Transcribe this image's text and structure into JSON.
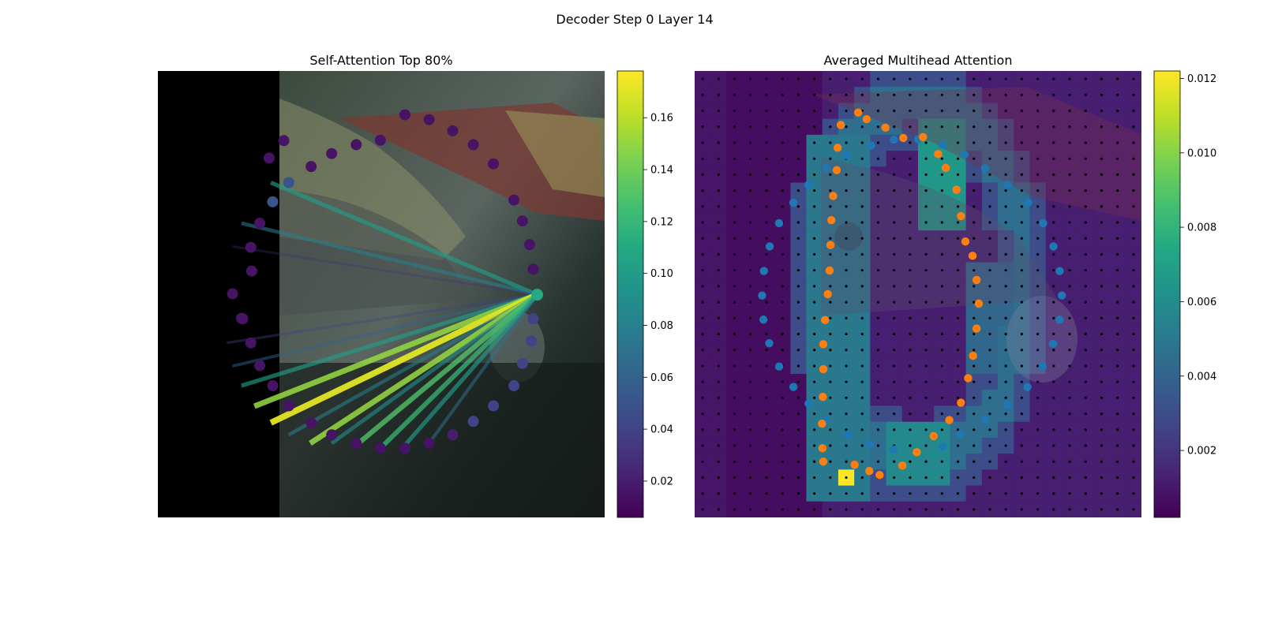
{
  "figure": {
    "title": "Decoder Step 0 Layer 14"
  },
  "colors": {
    "viridis": [
      "#440154",
      "#482475",
      "#414487",
      "#355f8d",
      "#2a788e",
      "#21918c",
      "#22a884",
      "#44bf70",
      "#7ad151",
      "#bddf26",
      "#fde725"
    ],
    "blue_points": "#1f77b4",
    "orange_points": "#ff7f0e",
    "grid_dots": "#000000"
  },
  "chart_data": [
    {
      "type": "scatter",
      "title": "Self-Attention Top 80%",
      "description_none": "",
      "xlim": [
        0,
        1
      ],
      "ylim": [
        0,
        1
      ],
      "query_point": {
        "x": 0.849,
        "y": 0.501,
        "value": 0.11
      },
      "points": [
        {
          "x": 0.84,
          "y": 0.444,
          "value": 0.015
        },
        {
          "x": 0.832,
          "y": 0.389,
          "value": 0.015
        },
        {
          "x": 0.816,
          "y": 0.336,
          "value": 0.015
        },
        {
          "x": 0.797,
          "y": 0.289,
          "value": 0.015
        },
        {
          "x": 0.751,
          "y": 0.208,
          "value": 0.015
        },
        {
          "x": 0.706,
          "y": 0.165,
          "value": 0.015
        },
        {
          "x": 0.66,
          "y": 0.134,
          "value": 0.015
        },
        {
          "x": 0.607,
          "y": 0.109,
          "value": 0.015
        },
        {
          "x": 0.553,
          "y": 0.098,
          "value": 0.015
        },
        {
          "x": 0.498,
          "y": 0.155,
          "value": 0.015
        },
        {
          "x": 0.444,
          "y": 0.165,
          "value": 0.015
        },
        {
          "x": 0.389,
          "y": 0.185,
          "value": 0.015
        },
        {
          "x": 0.343,
          "y": 0.214,
          "value": 0.015
        },
        {
          "x": 0.293,
          "y": 0.25,
          "value": 0.05
        },
        {
          "x": 0.257,
          "y": 0.293,
          "value": 0.05
        },
        {
          "x": 0.228,
          "y": 0.341,
          "value": 0.015
        },
        {
          "x": 0.208,
          "y": 0.395,
          "value": 0.015
        },
        {
          "x": 0.167,
          "y": 0.499,
          "value": 0.015
        },
        {
          "x": 0.187,
          "y": 0.554,
          "value": 0.015
        },
        {
          "x": 0.208,
          "y": 0.609,
          "value": 0.015
        },
        {
          "x": 0.228,
          "y": 0.66,
          "value": 0.015
        },
        {
          "x": 0.257,
          "y": 0.705,
          "value": 0.015
        },
        {
          "x": 0.293,
          "y": 0.75,
          "value": 0.015
        },
        {
          "x": 0.343,
          "y": 0.788,
          "value": 0.015
        },
        {
          "x": 0.389,
          "y": 0.815,
          "value": 0.015
        },
        {
          "x": 0.444,
          "y": 0.834,
          "value": 0.015
        },
        {
          "x": 0.498,
          "y": 0.845,
          "value": 0.015
        },
        {
          "x": 0.553,
          "y": 0.845,
          "value": 0.015
        },
        {
          "x": 0.607,
          "y": 0.834,
          "value": 0.015
        },
        {
          "x": 0.66,
          "y": 0.815,
          "value": 0.02
        },
        {
          "x": 0.706,
          "y": 0.785,
          "value": 0.04
        },
        {
          "x": 0.751,
          "y": 0.75,
          "value": 0.04
        },
        {
          "x": 0.797,
          "y": 0.705,
          "value": 0.04
        },
        {
          "x": 0.816,
          "y": 0.655,
          "value": 0.04
        },
        {
          "x": 0.836,
          "y": 0.605,
          "value": 0.04
        },
        {
          "x": 0.84,
          "y": 0.555,
          "value": 0.04
        },
        {
          "x": 0.249,
          "y": 0.195,
          "value": 0.015
        },
        {
          "x": 0.282,
          "y": 0.156,
          "value": 0.015
        },
        {
          "x": 0.21,
          "y": 0.448,
          "value": 0.015
        },
        {
          "x": 0.19,
          "y": 0.555,
          "value": 0.015
        }
      ],
      "links": [
        {
          "to": [
            0.253,
            0.25
          ],
          "value": 0.1
        },
        {
          "to": [
            0.187,
            0.341
          ],
          "value": 0.08
        },
        {
          "to": [
            0.167,
            0.393
          ],
          "value": 0.03
        },
        {
          "to": [
            0.154,
            0.609
          ],
          "value": 0.04
        },
        {
          "to": [
            0.167,
            0.661
          ],
          "value": 0.06
        },
        {
          "to": [
            0.187,
            0.705
          ],
          "value": 0.1
        },
        {
          "to": [
            0.216,
            0.751
          ],
          "value": 0.15
        },
        {
          "to": [
            0.253,
            0.788
          ],
          "value": 0.17
        },
        {
          "to": [
            0.293,
            0.815
          ],
          "value": 0.08
        },
        {
          "to": [
            0.341,
            0.834
          ],
          "value": 0.15
        },
        {
          "to": [
            0.389,
            0.834
          ],
          "value": 0.09
        },
        {
          "to": [
            0.444,
            0.838
          ],
          "value": 0.13
        },
        {
          "to": [
            0.498,
            0.845
          ],
          "value": 0.12
        },
        {
          "to": [
            0.553,
            0.838
          ],
          "value": 0.1
        },
        {
          "to": [
            0.607,
            0.834
          ],
          "value": 0.07
        }
      ],
      "colorbar": {
        "range": [
          0.006,
          0.178
        ],
        "ticks": [
          "0.02",
          "0.04",
          "0.06",
          "0.08",
          "0.10",
          "0.12",
          "0.14",
          "0.16"
        ],
        "tick_values": [
          0.02,
          0.04,
          0.06,
          0.08,
          0.1,
          0.12,
          0.14,
          0.16
        ]
      }
    },
    {
      "type": "heatmap",
      "title": "Averaged Multihead Attention",
      "grid": {
        "rows": 28,
        "cols": 28
      },
      "highlight_cell": {
        "row": 25,
        "col": 9,
        "value": 0.0122
      },
      "blue_points": [
        {
          "x": 0.295,
          "y": 0.217
        },
        {
          "x": 0.341,
          "y": 0.189
        },
        {
          "x": 0.395,
          "y": 0.167
        },
        {
          "x": 0.446,
          "y": 0.154
        },
        {
          "x": 0.5,
          "y": 0.153
        },
        {
          "x": 0.556,
          "y": 0.165
        },
        {
          "x": 0.604,
          "y": 0.187
        },
        {
          "x": 0.65,
          "y": 0.218
        },
        {
          "x": 0.701,
          "y": 0.255
        },
        {
          "x": 0.746,
          "y": 0.295
        },
        {
          "x": 0.78,
          "y": 0.341
        },
        {
          "x": 0.803,
          "y": 0.393
        },
        {
          "x": 0.817,
          "y": 0.448
        },
        {
          "x": 0.822,
          "y": 0.503
        },
        {
          "x": 0.817,
          "y": 0.557
        },
        {
          "x": 0.802,
          "y": 0.611
        },
        {
          "x": 0.779,
          "y": 0.662
        },
        {
          "x": 0.745,
          "y": 0.708
        },
        {
          "x": 0.701,
          "y": 0.748
        },
        {
          "x": 0.65,
          "y": 0.782
        },
        {
          "x": 0.595,
          "y": 0.813
        },
        {
          "x": 0.556,
          "y": 0.841
        },
        {
          "x": 0.445,
          "y": 0.848
        },
        {
          "x": 0.392,
          "y": 0.837
        },
        {
          "x": 0.343,
          "y": 0.814
        },
        {
          "x": 0.294,
          "y": 0.782
        },
        {
          "x": 0.255,
          "y": 0.745
        },
        {
          "x": 0.221,
          "y": 0.708
        },
        {
          "x": 0.189,
          "y": 0.662
        },
        {
          "x": 0.167,
          "y": 0.61
        },
        {
          "x": 0.154,
          "y": 0.557
        },
        {
          "x": 0.151,
          "y": 0.503
        },
        {
          "x": 0.155,
          "y": 0.448
        },
        {
          "x": 0.168,
          "y": 0.393
        },
        {
          "x": 0.189,
          "y": 0.341
        },
        {
          "x": 0.221,
          "y": 0.295
        },
        {
          "x": 0.255,
          "y": 0.255
        }
      ],
      "orange_points": [
        {
          "x": 0.327,
          "y": 0.121
        },
        {
          "x": 0.366,
          "y": 0.093
        },
        {
          "x": 0.385,
          "y": 0.108
        },
        {
          "x": 0.427,
          "y": 0.127
        },
        {
          "x": 0.467,
          "y": 0.15
        },
        {
          "x": 0.511,
          "y": 0.148
        },
        {
          "x": 0.545,
          "y": 0.186
        },
        {
          "x": 0.562,
          "y": 0.217
        },
        {
          "x": 0.586,
          "y": 0.266
        },
        {
          "x": 0.596,
          "y": 0.325
        },
        {
          "x": 0.606,
          "y": 0.382
        },
        {
          "x": 0.622,
          "y": 0.414
        },
        {
          "x": 0.631,
          "y": 0.468
        },
        {
          "x": 0.636,
          "y": 0.521
        },
        {
          "x": 0.631,
          "y": 0.577
        },
        {
          "x": 0.623,
          "y": 0.638
        },
        {
          "x": 0.612,
          "y": 0.688
        },
        {
          "x": 0.596,
          "y": 0.743
        },
        {
          "x": 0.57,
          "y": 0.782
        },
        {
          "x": 0.535,
          "y": 0.818
        },
        {
          "x": 0.497,
          "y": 0.854
        },
        {
          "x": 0.465,
          "y": 0.884
        },
        {
          "x": 0.414,
          "y": 0.905
        },
        {
          "x": 0.391,
          "y": 0.896
        },
        {
          "x": 0.358,
          "y": 0.882
        },
        {
          "x": 0.288,
          "y": 0.875
        },
        {
          "x": 0.286,
          "y": 0.845
        },
        {
          "x": 0.285,
          "y": 0.79
        },
        {
          "x": 0.287,
          "y": 0.73
        },
        {
          "x": 0.288,
          "y": 0.668
        },
        {
          "x": 0.288,
          "y": 0.612
        },
        {
          "x": 0.292,
          "y": 0.558
        },
        {
          "x": 0.298,
          "y": 0.5
        },
        {
          "x": 0.302,
          "y": 0.447
        },
        {
          "x": 0.304,
          "y": 0.39
        },
        {
          "x": 0.306,
          "y": 0.334
        },
        {
          "x": 0.31,
          "y": 0.28
        },
        {
          "x": 0.318,
          "y": 0.222
        },
        {
          "x": 0.32,
          "y": 0.172
        }
      ],
      "colorbar": {
        "range": [
          0.0002,
          0.0122
        ],
        "ticks": [
          "0.002",
          "0.004",
          "0.006",
          "0.008",
          "0.010",
          "0.012"
        ],
        "tick_values": [
          0.002,
          0.004,
          0.006,
          0.008,
          0.01,
          0.012
        ]
      }
    }
  ]
}
